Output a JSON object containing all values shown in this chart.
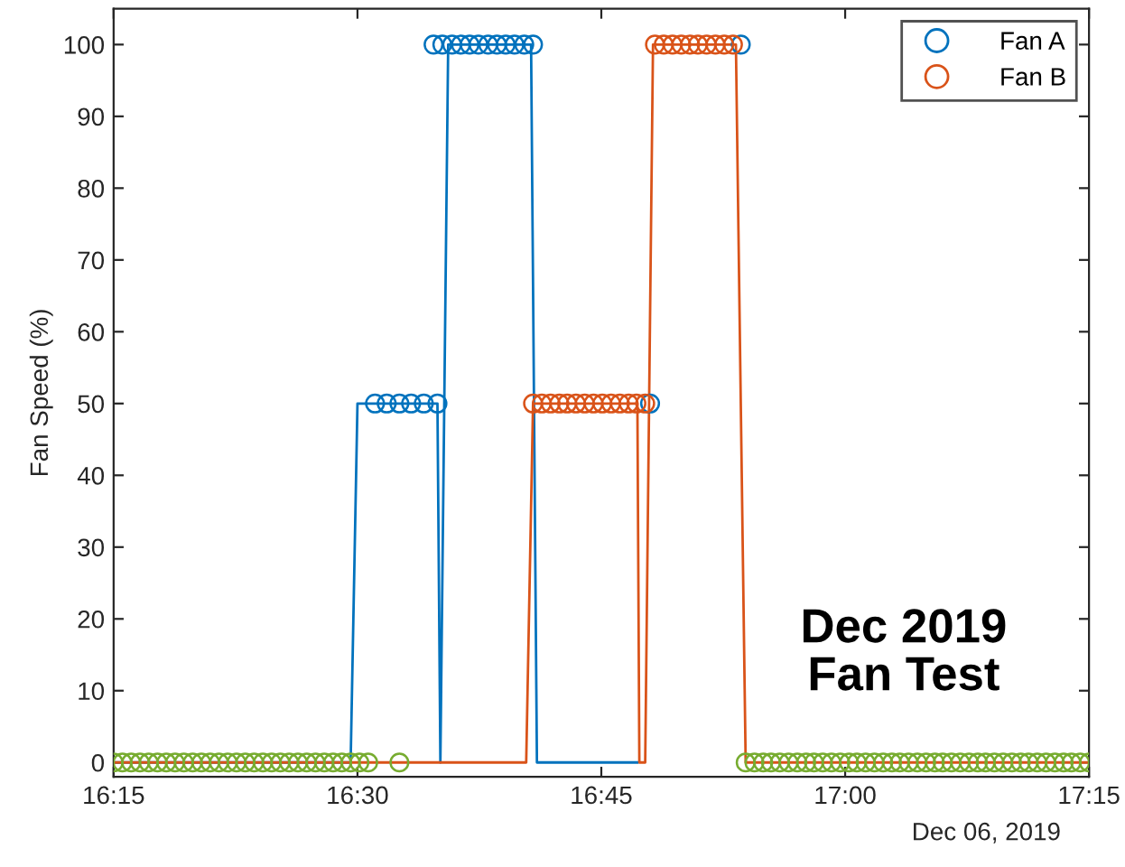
{
  "chart_data": {
    "type": "scatter",
    "ylabel": "Fan Speed (%)",
    "annotations": [
      "Dec 06, 2019",
      "Dec 2019\nFan Test"
    ],
    "xlim": [
      16.25,
      17.25
    ],
    "xticks": [
      {
        "value": 16.25,
        "label": "16:15"
      },
      {
        "value": 16.5,
        "label": "16:30"
      },
      {
        "value": 16.75,
        "label": "16:45"
      },
      {
        "value": 17,
        "label": "17:00"
      },
      {
        "value": 17.25,
        "label": "17:15"
      }
    ],
    "ylim": [
      -2,
      105
    ],
    "yticks": [
      0,
      10,
      20,
      30,
      40,
      50,
      60,
      70,
      80,
      90,
      100
    ],
    "grid": false,
    "legend": "top right",
    "marker": "circle",
    "series": [
      {
        "type": "line",
        "marker": "none",
        "color": "#0072bd",
        "x": [
          16.25,
          16.493,
          16.5,
          16.582,
          16.585,
          16.593,
          16.678,
          16.684,
          16.787
        ],
        "values": [
          0,
          0,
          50,
          50,
          0,
          100,
          100,
          0,
          0
        ]
      },
      {
        "type": "line",
        "marker": "none",
        "color": "#d95319",
        "x": [
          16.25,
          16.673,
          16.68,
          16.787,
          16.789,
          16.795,
          16.803,
          16.888,
          16.898,
          17.25
        ],
        "values": [
          0,
          0,
          50,
          50,
          0,
          0,
          100,
          100,
          0,
          0
        ]
      },
      {
        "name": "Fan A",
        "color": "#0072bd",
        "x": [
          16.518,
          16.53,
          16.543,
          16.555,
          16.568,
          16.582,
          16.578,
          16.587,
          16.597,
          16.606,
          16.615,
          16.624,
          16.634,
          16.643,
          16.652,
          16.661,
          16.671,
          16.68,
          16.8,
          16.893
        ],
        "values": [
          50,
          50,
          50,
          50,
          50,
          50,
          100,
          100,
          100,
          100,
          100,
          100,
          100,
          100,
          100,
          100,
          100,
          100,
          50,
          100
        ]
      },
      {
        "name": "Fan B",
        "color": "#d95319",
        "x": [
          16.68,
          16.689,
          16.698,
          16.707,
          16.715,
          16.724,
          16.733,
          16.742,
          16.751,
          16.76,
          16.769,
          16.778,
          16.786,
          16.795,
          16.805,
          16.814,
          16.823,
          16.832,
          16.841,
          16.849,
          16.858,
          16.867,
          16.876,
          16.885
        ],
        "values": [
          50,
          50,
          50,
          50,
          50,
          50,
          50,
          50,
          50,
          50,
          50,
          50,
          50,
          50,
          100,
          100,
          100,
          100,
          100,
          100,
          100,
          100,
          100,
          100
        ]
      },
      {
        "color": "#77ac30",
        "x": [
          16.25,
          16.259,
          16.268,
          16.277,
          16.286,
          16.295,
          16.304,
          16.313,
          16.322,
          16.331,
          16.34,
          16.349,
          16.358,
          16.367,
          16.376,
          16.385,
          16.394,
          16.403,
          16.412,
          16.421,
          16.43,
          16.439,
          16.448,
          16.457,
          16.466,
          16.475,
          16.484,
          16.493,
          16.502,
          16.511,
          16.543,
          16.898,
          16.907,
          16.916,
          16.924,
          16.933,
          16.942,
          16.951,
          16.96,
          16.968,
          16.977,
          16.986,
          16.995,
          17.004,
          17.012,
          17.021,
          17.03,
          17.039,
          17.048,
          17.056,
          17.065,
          17.074,
          17.083,
          17.092,
          17.1,
          17.109,
          17.118,
          17.127,
          17.136,
          17.144,
          17.153,
          17.162,
          17.171,
          17.18,
          17.188,
          17.197,
          17.206,
          17.215,
          17.224,
          17.232,
          17.241,
          17.25
        ],
        "values": [
          0,
          0,
          0,
          0,
          0,
          0,
          0,
          0,
          0,
          0,
          0,
          0,
          0,
          0,
          0,
          0,
          0,
          0,
          0,
          0,
          0,
          0,
          0,
          0,
          0,
          0,
          0,
          0,
          0,
          0,
          0,
          0,
          0,
          0,
          0,
          0,
          0,
          0,
          0,
          0,
          0,
          0,
          0,
          0,
          0,
          0,
          0,
          0,
          0,
          0,
          0,
          0,
          0,
          0,
          0,
          0,
          0,
          0,
          0,
          0,
          0,
          0,
          0,
          0,
          0,
          0,
          0,
          0,
          0,
          0,
          0,
          0
        ]
      }
    ]
  }
}
